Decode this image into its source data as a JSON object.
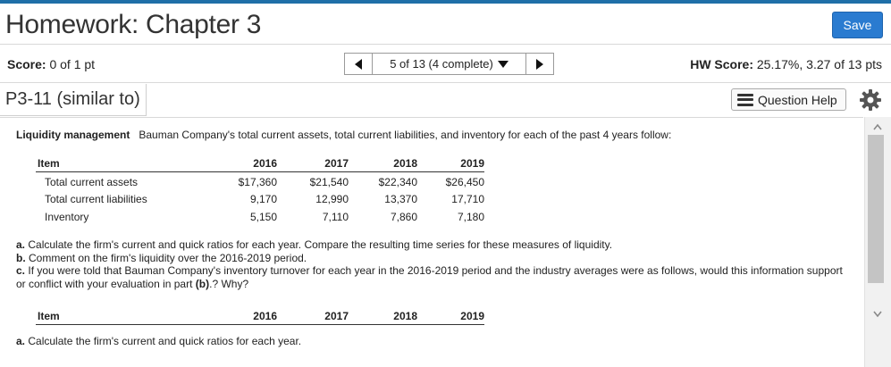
{
  "header": {
    "title": "Homework: Chapter 3",
    "save_label": "Save"
  },
  "score_bar": {
    "score_label": "Score:",
    "score_value": "0 of 1 pt",
    "nav_position": "5 of 13 (4 complete)",
    "hw_score_label": "HW Score:",
    "hw_score_value": "25.17%, 3.27 of 13 pts"
  },
  "question_bar": {
    "question_id": "P3-11 (similar to)",
    "help_label": "Question Help"
  },
  "problem": {
    "topic": "Liquidity management",
    "intro": "Bauman Company's total current assets, total current liabilities, and inventory for each of the past 4 years follow:",
    "table": {
      "headers": [
        "Item",
        "2016",
        "2017",
        "2018",
        "2019"
      ],
      "rows": [
        [
          "Total current assets",
          "$17,360",
          "$21,540",
          "$22,340",
          "$26,450"
        ],
        [
          "Total current liabilities",
          "9,170",
          "12,990",
          "13,370",
          "17,710"
        ],
        [
          "Inventory",
          "5,150",
          "7,110",
          "7,860",
          "7,180"
        ]
      ]
    },
    "questions": [
      {
        "letter": "a.",
        "text": "Calculate the firm's current and quick ratios for each year. Compare the resulting time series for these measures of liquidity."
      },
      {
        "letter": "b.",
        "text": "Comment on the firm's liquidity over the 2016-2019 period."
      },
      {
        "letter": "c.",
        "text": "If you were told that Bauman Company's inventory turnover for each year in the 2016-2019 period and the industry averages were as follows, would this information support or conflict with your evaluation in part",
        "bold_ref": "(b)",
        "tail": ".? Why?"
      }
    ],
    "table2": {
      "headers": [
        "Item",
        "2016",
        "2017",
        "2018",
        "2019"
      ]
    },
    "part_a": {
      "letter": "a.",
      "text": "Calculate the firm's current and quick ratios for each year."
    }
  },
  "colors": {
    "accent": "#2a7bd0",
    "top_strip": "#1f6fa8",
    "scroll_thumb": "#c4c4c4"
  },
  "icons": [
    "arrow-left-icon",
    "arrow-right-icon",
    "chevron-down-icon",
    "list-icon",
    "gear-icon",
    "scroll-up-icon",
    "scroll-down-icon"
  ]
}
